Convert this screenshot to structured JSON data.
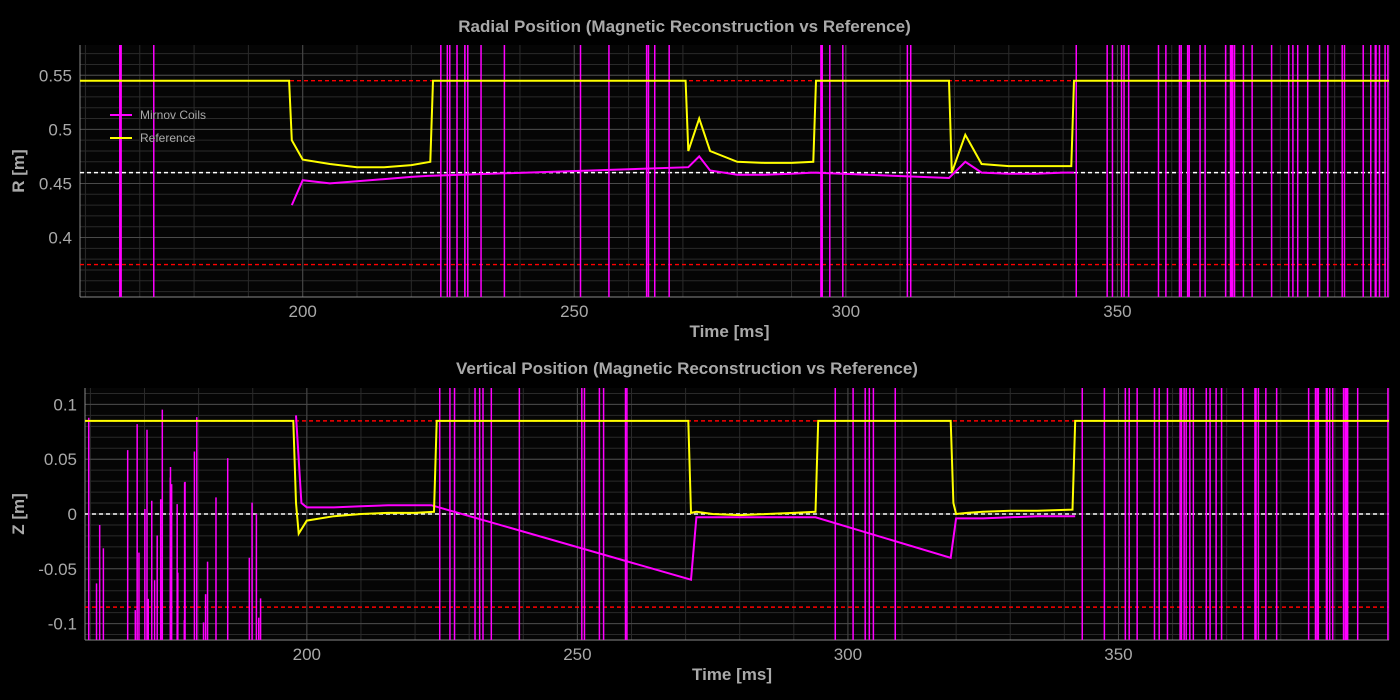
{
  "chart_data": [
    {
      "type": "line",
      "title": "Radial Position (Magnetic Reconstruction vs Reference)",
      "xlabel": "Time [ms]",
      "ylabel": "R [m]",
      "xlim": [
        159,
        400
      ],
      "ylim": [
        0.345,
        0.578
      ],
      "x_ticks": [
        200,
        250,
        300,
        350
      ],
      "x_tick_labels": [
        "200",
        "250",
        "300",
        "350"
      ],
      "y_ticks": [
        0.4,
        0.45,
        0.5,
        0.55
      ],
      "y_tick_labels": [
        "0.4",
        "0.45",
        "0.5",
        "0.55"
      ],
      "grid": true,
      "legend_position": "upper-left",
      "hlines": [
        {
          "y": 0.545,
          "color": "#ff0000",
          "style": "dashed"
        },
        {
          "y": 0.46,
          "color": "#ffffff",
          "style": "dashed"
        },
        {
          "y": 0.375,
          "color": "#ff0000",
          "style": "dashed"
        }
      ],
      "series": [
        {
          "name": "Mirnov Coils",
          "color": "#ff00ff",
          "x": [
            198,
            200,
            205,
            210,
            215,
            220,
            223,
            271,
            273,
            275,
            280,
            285,
            290,
            294,
            319,
            322,
            325,
            330,
            335,
            340,
            342
          ],
          "y": [
            0.43,
            0.453,
            0.45,
            0.452,
            0.454,
            0.456,
            0.457,
            0.465,
            0.475,
            0.462,
            0.458,
            0.458,
            0.459,
            0.46,
            0.455,
            0.47,
            0.46,
            0.459,
            0.459,
            0.46,
            0.46
          ]
        },
        {
          "name": "Reference",
          "color": "#ffff00",
          "x": [
            159,
            197.5,
            198,
            200,
            205,
            210,
            215,
            220,
            223.5,
            224,
            270.5,
            271,
            273,
            275,
            280,
            285,
            290,
            294,
            294.5,
            319,
            319.5,
            322,
            325,
            330,
            335,
            341.5,
            342,
            400
          ],
          "y": [
            0.545,
            0.545,
            0.49,
            0.472,
            0.468,
            0.465,
            0.465,
            0.467,
            0.47,
            0.545,
            0.545,
            0.48,
            0.51,
            0.48,
            0.47,
            0.469,
            0.469,
            0.47,
            0.545,
            0.545,
            0.46,
            0.495,
            0.468,
            0.466,
            0.466,
            0.466,
            0.545,
            0.545
          ]
        }
      ]
    },
    {
      "type": "line",
      "title": "Vertical Position (Magnetic Reconstruction vs Reference)",
      "xlabel": "Time [ms]",
      "ylabel": "Z [m]",
      "xlim": [
        159,
        400
      ],
      "ylim": [
        -0.115,
        0.115
      ],
      "x_ticks": [
        200,
        250,
        300,
        350
      ],
      "x_tick_labels": [
        "200",
        "250",
        "300",
        "350"
      ],
      "y_ticks": [
        -0.1,
        -0.05,
        0,
        0.05,
        0.1
      ],
      "y_tick_labels": [
        "-0.1",
        "-0.05",
        "0",
        "0.05",
        "0.1"
      ],
      "grid": true,
      "hlines": [
        {
          "y": 0.085,
          "color": "#ff0000",
          "style": "dashed"
        },
        {
          "y": 0.0,
          "color": "#ffffff",
          "style": "dashed"
        },
        {
          "y": -0.085,
          "color": "#ff0000",
          "style": "dashed"
        }
      ],
      "series": [
        {
          "name": "Mirnov Coils",
          "color": "#ff00ff",
          "x": [
            198,
            199,
            200,
            205,
            210,
            215,
            220,
            223,
            271,
            272,
            275,
            280,
            285,
            290,
            294,
            319,
            320,
            322,
            325,
            330,
            335,
            340,
            342
          ],
          "y": [
            0.09,
            0.01,
            0.006,
            0.006,
            0.007,
            0.008,
            0.008,
            0.008,
            -0.06,
            -0.003,
            -0.003,
            -0.003,
            -0.003,
            -0.003,
            -0.003,
            -0.04,
            -0.004,
            -0.004,
            -0.004,
            -0.003,
            -0.002,
            -0.002,
            -0.002
          ]
        },
        {
          "name": "Reference",
          "color": "#ffff00",
          "x": [
            159,
            197.5,
            198,
            198.5,
            200,
            205,
            210,
            215,
            220,
            223.5,
            224,
            270.5,
            271,
            272,
            275,
            280,
            285,
            290,
            294,
            294.5,
            319,
            319.5,
            320,
            322,
            325,
            330,
            335,
            341.5,
            342,
            400
          ],
          "y": [
            0.085,
            0.085,
            0.01,
            -0.018,
            -0.006,
            -0.002,
            0.0,
            0.001,
            0.001,
            0.002,
            0.085,
            0.085,
            0.001,
            0.002,
            0.0,
            -0.001,
            0.0,
            0.001,
            0.002,
            0.085,
            0.085,
            0.01,
            0.0,
            0.001,
            0.002,
            0.003,
            0.003,
            0.004,
            0.085,
            0.085
          ]
        }
      ]
    }
  ]
}
